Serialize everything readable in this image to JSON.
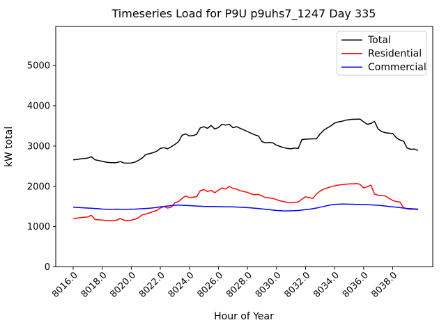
{
  "figure": {
    "background": "#ffffff",
    "frame_color": "#000000"
  },
  "chart_data": {
    "type": "line",
    "title": "Timeseries Load for P9U p9uhs7_1247  Day 335",
    "xlabel": "Hour of Year",
    "ylabel": "kW total",
    "xlim": [
      8014.8,
      8040.76
    ],
    "ylim": [
      0,
      5970
    ],
    "grid": false,
    "x_ticks": [
      8016,
      8018,
      8020,
      8022,
      8024,
      8026,
      8028,
      8030,
      8032,
      8034,
      8036,
      8038
    ],
    "x_tick_labels": [
      "8016.0",
      "8018.0",
      "8020.0",
      "8022.0",
      "8024.0",
      "8026.0",
      "8028.0",
      "8030.0",
      "8032.0",
      "8034.0",
      "8036.0",
      "8038.0"
    ],
    "y_ticks": [
      0,
      1000,
      2000,
      3000,
      4000,
      5000
    ],
    "y_tick_labels": [
      "0",
      "1000",
      "2000",
      "3000",
      "4000",
      "5000"
    ],
    "legend": {
      "position": "upper right",
      "entries": [
        "Total",
        "Residential",
        "Commercial"
      ],
      "border_color": "#cccccc",
      "background": "#ffffff"
    },
    "x": [
      8016.0,
      8016.25,
      8016.5,
      8016.75,
      8017.0,
      8017.25,
      8017.5,
      8017.75,
      8018.0,
      8018.25,
      8018.5,
      8018.75,
      8019.0,
      8019.25,
      8019.5,
      8019.75,
      8020.0,
      8020.25,
      8020.5,
      8020.75,
      8021.0,
      8021.25,
      8021.5,
      8021.75,
      8022.0,
      8022.25,
      8022.5,
      8022.75,
      8023.0,
      8023.25,
      8023.5,
      8023.75,
      8024.0,
      8024.25,
      8024.5,
      8024.75,
      8025.0,
      8025.25,
      8025.5,
      8025.75,
      8026.0,
      8026.25,
      8026.5,
      8026.75,
      8027.0,
      8027.25,
      8027.5,
      8027.75,
      8028.0,
      8028.25,
      8028.5,
      8028.75,
      8029.0,
      8029.25,
      8029.5,
      8029.75,
      8030.0,
      8030.25,
      8030.5,
      8030.75,
      8031.0,
      8031.25,
      8031.5,
      8031.75,
      8032.0,
      8032.25,
      8032.5,
      8032.75,
      8033.0,
      8033.25,
      8033.5,
      8033.75,
      8034.0,
      8034.25,
      8034.5,
      8034.75,
      8035.0,
      8035.25,
      8035.5,
      8035.75,
      8036.0,
      8036.25,
      8036.5,
      8036.75,
      8037.0,
      8037.25,
      8037.5,
      8037.75,
      8038.0,
      8038.25,
      8038.5,
      8038.75,
      8039.0,
      8039.25,
      8039.5,
      8039.75
    ],
    "series": [
      {
        "name": "Total",
        "color": "#000000",
        "values": [
          2660,
          2665,
          2680,
          2690,
          2700,
          2735,
          2660,
          2640,
          2620,
          2600,
          2590,
          2585,
          2590,
          2615,
          2580,
          2575,
          2580,
          2600,
          2645,
          2700,
          2790,
          2810,
          2835,
          2870,
          2940,
          2960,
          2930,
          2980,
          3040,
          3105,
          3270,
          3300,
          3250,
          3260,
          3290,
          3450,
          3480,
          3440,
          3510,
          3425,
          3460,
          3540,
          3520,
          3540,
          3455,
          3480,
          3440,
          3400,
          3360,
          3320,
          3280,
          3250,
          3110,
          3080,
          3090,
          3080,
          3020,
          2990,
          2960,
          2940,
          2930,
          2950,
          2940,
          3160,
          3170,
          3175,
          3180,
          3180,
          3300,
          3390,
          3450,
          3500,
          3570,
          3600,
          3615,
          3640,
          3655,
          3665,
          3665,
          3670,
          3600,
          3540,
          3560,
          3615,
          3420,
          3360,
          3330,
          3320,
          3310,
          3210,
          3150,
          3120,
          2950,
          2920,
          2925,
          2890
        ]
      },
      {
        "name": "Residential",
        "color": "#ff0000",
        "values": [
          1200,
          1210,
          1220,
          1230,
          1240,
          1280,
          1175,
          1170,
          1160,
          1155,
          1150,
          1150,
          1160,
          1200,
          1160,
          1150,
          1160,
          1180,
          1220,
          1290,
          1310,
          1340,
          1370,
          1400,
          1460,
          1500,
          1460,
          1480,
          1590,
          1620,
          1700,
          1760,
          1720,
          1730,
          1740,
          1890,
          1920,
          1870,
          1900,
          1840,
          1900,
          1960,
          1930,
          2000,
          1950,
          1930,
          1890,
          1870,
          1850,
          1810,
          1790,
          1800,
          1760,
          1720,
          1710,
          1700,
          1670,
          1640,
          1620,
          1600,
          1590,
          1600,
          1610,
          1680,
          1740,
          1720,
          1700,
          1810,
          1880,
          1930,
          1960,
          1990,
          2010,
          2030,
          2040,
          2050,
          2060,
          2060,
          2070,
          2050,
          1960,
          1990,
          2030,
          1810,
          1780,
          1770,
          1760,
          1700,
          1650,
          1620,
          1610,
          1470,
          1440,
          1430,
          1430,
          1420
        ]
      },
      {
        "name": "Commercial",
        "color": "#0000ff",
        "values": [
          1480,
          1475,
          1470,
          1465,
          1460,
          1455,
          1450,
          1445,
          1435,
          1430,
          1428,
          1430,
          1432,
          1430,
          1428,
          1430,
          1432,
          1435,
          1440,
          1445,
          1450,
          1455,
          1465,
          1475,
          1490,
          1500,
          1510,
          1520,
          1530,
          1535,
          1530,
          1525,
          1520,
          1515,
          1510,
          1505,
          1500,
          1500,
          1500,
          1500,
          1495,
          1495,
          1490,
          1490,
          1490,
          1485,
          1480,
          1475,
          1470,
          1465,
          1455,
          1450,
          1440,
          1430,
          1420,
          1410,
          1400,
          1395,
          1390,
          1390,
          1392,
          1395,
          1400,
          1410,
          1420,
          1430,
          1445,
          1460,
          1480,
          1500,
          1520,
          1540,
          1550,
          1555,
          1560,
          1560,
          1555,
          1555,
          1550,
          1550,
          1548,
          1545,
          1540,
          1535,
          1530,
          1520,
          1510,
          1500,
          1490,
          1480,
          1470,
          1460,
          1450,
          1445,
          1440,
          1435
        ]
      }
    ]
  }
}
